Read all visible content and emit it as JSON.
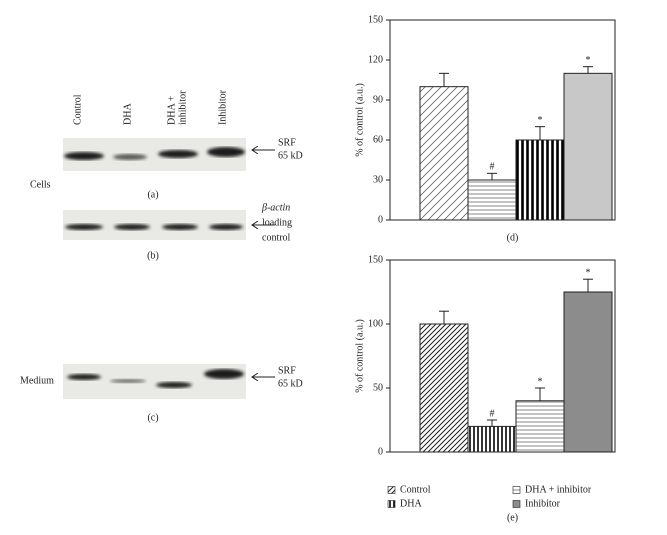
{
  "blots": {
    "lanes": [
      [
        "Control"
      ],
      [
        "DHA"
      ],
      [
        "DHA +",
        "inhibitor"
      ],
      [
        "Inhibitor"
      ]
    ],
    "a": {
      "marker": [
        "SRF",
        "65 kD"
      ],
      "row_label": "Cells",
      "caption": "(a)"
    },
    "b": {
      "marker": [
        "β-actin",
        "loading",
        "control"
      ],
      "caption": "(b)"
    },
    "c": {
      "marker": [
        "SRF",
        "65 kD"
      ],
      "row_label": "Medium",
      "caption": "(c)"
    }
  },
  "chart_data": [
    {
      "type": "bar",
      "ylabel": "% of control (a.u.)",
      "caption": "(d)",
      "values": [
        100,
        30,
        60,
        110
      ],
      "errors": [
        10,
        5,
        10,
        5
      ],
      "annotations": [
        null,
        "#",
        "*",
        "*"
      ],
      "fills": [
        "diag-sparse",
        "horiz",
        "vert-bold",
        "#c8c8c8"
      ],
      "ylim": [
        0,
        150
      ],
      "yticks": [
        0,
        30,
        60,
        90,
        120,
        150
      ]
    },
    {
      "type": "bar",
      "ylabel": "% of control (a.u.)",
      "caption": "(e)",
      "categories": [
        "Control",
        "DHA",
        "DHA + inhibitor",
        "Inhibitor"
      ],
      "values": [
        100,
        20,
        40,
        125
      ],
      "errors": [
        10,
        5,
        10,
        10
      ],
      "annotations": [
        null,
        "#",
        "*",
        "*"
      ],
      "fills": [
        "diag-dense",
        "vert",
        "horiz",
        "#8c8c8c"
      ],
      "ylim": [
        0,
        150
      ],
      "yticks": [
        0,
        50,
        100,
        150
      ]
    }
  ]
}
